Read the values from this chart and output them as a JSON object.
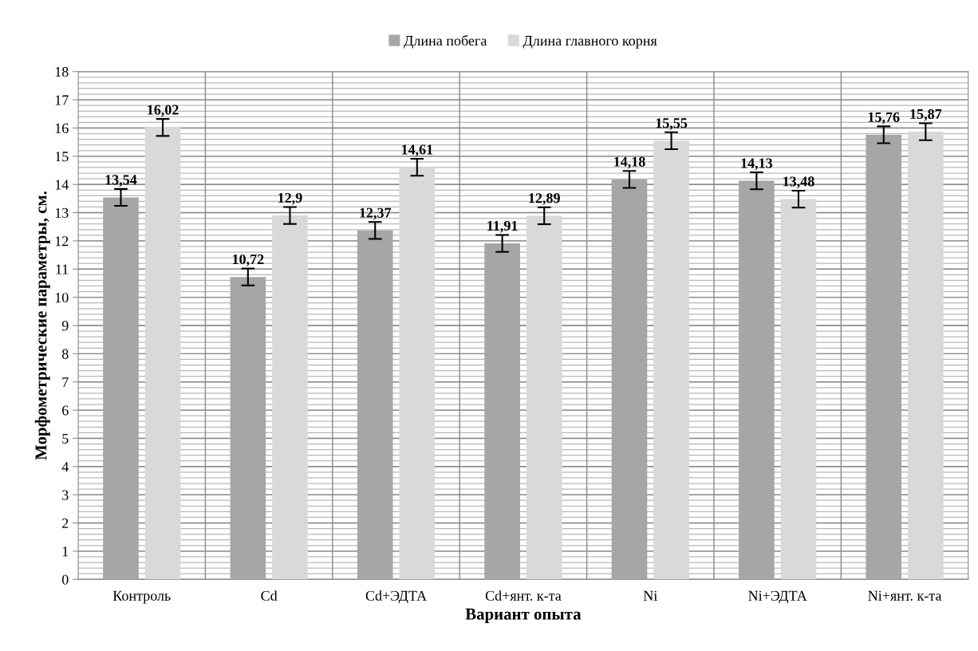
{
  "chart_data": {
    "type": "bar",
    "xlabel": "Вариант опыта",
    "ylabel": "Морфометрические параметры, см.",
    "categories": [
      "Контроль",
      "Cd",
      "Cd+ЭДТА",
      "Cd+янт. к-та",
      "Ni",
      "Ni+ЭДТА",
      "Ni+янт. к-та"
    ],
    "series": [
      {
        "name": "Длина побега",
        "color": "#a6a6a6",
        "values": [
          13.54,
          10.72,
          12.37,
          11.91,
          14.18,
          14.13,
          15.76
        ],
        "errors": [
          0.3,
          0.3,
          0.3,
          0.3,
          0.3,
          0.3,
          0.3
        ],
        "value_labels": [
          "13,54",
          "10,72",
          "12,37",
          "11,91",
          "14,18",
          "14,13",
          "15,76"
        ]
      },
      {
        "name": "Длина главного корня",
        "color": "#d9d9d9",
        "values": [
          16.02,
          12.9,
          14.61,
          12.89,
          15.55,
          13.48,
          15.87
        ],
        "errors": [
          0.3,
          0.3,
          0.3,
          0.3,
          0.3,
          0.3,
          0.3
        ],
        "value_labels": [
          "16,02",
          "12,9",
          "14,61",
          "12,89",
          "15,55",
          "13,48",
          "15,87"
        ]
      }
    ],
    "ylim": [
      0,
      18
    ],
    "yticks": [
      0,
      1,
      2,
      3,
      4,
      5,
      6,
      7,
      8,
      9,
      10,
      11,
      12,
      13,
      14,
      15,
      16,
      17,
      18
    ],
    "grid": true,
    "legend": "top"
  }
}
